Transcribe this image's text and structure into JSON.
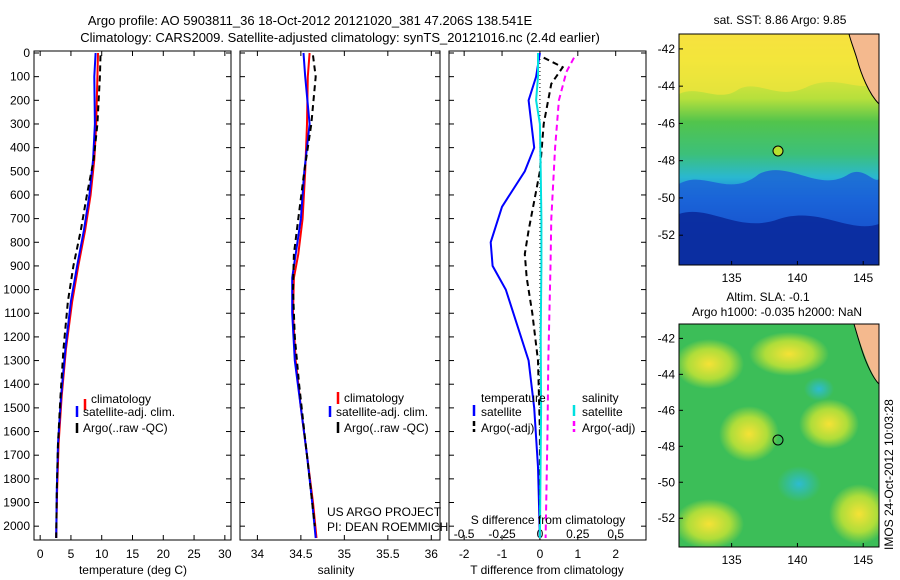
{
  "header": {
    "line1": "Argo profile: AO 5903811_36 18-Oct-2012 20121020_381 47.206S 138.541E",
    "line2": "Climatology: CARS2009. Satellite-adjusted climatology: synTS_20121016.nc (2.4d earlier)"
  },
  "colors": {
    "climatology": "#ff0000",
    "satellite": "#0000ff",
    "argo": "#000000",
    "sal_satellite": "#00e0e0",
    "sal_argo": "#ff00ff"
  },
  "panels": {
    "temperature": {
      "xlabel": "temperature (deg C)",
      "xticks": [
        "0",
        "5",
        "10",
        "15",
        "20",
        "25",
        "30"
      ],
      "legend": [
        "climatology",
        "satellite-adj. clim.",
        "Argo(..raw -QC)"
      ]
    },
    "salinity": {
      "xlabel": "salinity",
      "xticks": [
        "34",
        "34.5",
        "35",
        "35.5",
        "36"
      ],
      "legend": [
        "climatology",
        "satellite-adj. clim.",
        "Argo(..raw -QC)"
      ],
      "credit1": "US ARGO PROJECT",
      "credit2": "PI: DEAN ROEMMICH"
    },
    "difference": {
      "xlabel": "T difference from climatology",
      "top_label": "S difference from climatology",
      "xticks": [
        "-2",
        "-1",
        "0",
        "1",
        "2"
      ],
      "sticks": [
        "-0.5",
        "-0.25",
        "0",
        "0.25",
        "0.5"
      ],
      "legend_t_head": "temperature",
      "legend_t": [
        "satellite",
        "Argo(-adj)"
      ],
      "legend_s_head": "salinity",
      "legend_s": [
        "satellite",
        "Argo(-adj)"
      ]
    },
    "yticks": [
      "0",
      "100",
      "200",
      "300",
      "400",
      "500",
      "600",
      "700",
      "800",
      "900",
      "1000",
      "1100",
      "1200",
      "1300",
      "1400",
      "1500",
      "1600",
      "1700",
      "1800",
      "1900",
      "2000"
    ]
  },
  "maps": {
    "sst_title": "sat. SST: 8.86  Argo: 9.85",
    "sla_title1": "Altim. SLA: -0.1",
    "sla_title2": "Argo h1000: -0.035 h2000: NaN",
    "yticks": [
      "-42",
      "-44",
      "-46",
      "-48",
      "-50",
      "-52"
    ],
    "xticks": [
      "135",
      "140",
      "145"
    ],
    "stamp": "IMOS 24-Oct-2012 10:03:28"
  },
  "chart_data": [
    {
      "type": "line",
      "title": "Argo profile: AO 5903811_36 18-Oct-2012 20121020_381 47.206S 138.541E",
      "xlabel": "temperature (deg C)",
      "ylabel": "",
      "xlim": [
        -1,
        31
      ],
      "ylim": [
        2050,
        0
      ],
      "series": [
        {
          "name": "climatology",
          "x": [
            9.4,
            9.3,
            9.1,
            8.8,
            8.2,
            7.3,
            6.2,
            5.2,
            4.2,
            3.5,
            3.0,
            2.75,
            2.6
          ],
          "y": [
            0,
            100,
            300,
            450,
            600,
            750,
            900,
            1050,
            1250,
            1450,
            1650,
            1850,
            2050
          ]
        },
        {
          "name": "satellite-adj. clim.",
          "x": [
            9.0,
            8.8,
            8.9,
            8.6,
            8.0,
            7.1,
            6.0,
            5.0,
            4.1,
            3.4,
            2.9,
            2.7,
            2.6
          ],
          "y": [
            0,
            100,
            300,
            450,
            600,
            750,
            900,
            1050,
            1250,
            1450,
            1650,
            1850,
            2050
          ]
        },
        {
          "name": "Argo(..raw -QC)",
          "x": [
            9.8,
            9.7,
            9.3,
            8.7,
            7.6,
            6.6,
            5.4,
            4.5,
            3.8,
            3.3,
            2.9,
            2.7,
            2.6
          ],
          "y": [
            10,
            100,
            300,
            450,
            600,
            750,
            900,
            1050,
            1250,
            1450,
            1650,
            1850,
            2050
          ]
        }
      ]
    },
    {
      "type": "line",
      "xlabel": "salinity",
      "ylabel": "",
      "xlim": [
        33.8,
        36.1
      ],
      "ylim": [
        2050,
        0
      ],
      "series": [
        {
          "name": "climatology",
          "x": [
            34.6,
            34.58,
            34.57,
            34.55,
            34.52,
            34.47,
            34.42,
            34.41,
            34.44,
            34.5,
            34.57,
            34.64,
            34.68
          ],
          "y": [
            0,
            100,
            300,
            500,
            700,
            850,
            950,
            1100,
            1300,
            1500,
            1700,
            1900,
            2050
          ]
        },
        {
          "name": "satellite-adj. clim.",
          "x": [
            34.53,
            34.55,
            34.6,
            34.54,
            34.5,
            34.44,
            34.4,
            34.4,
            34.43,
            34.5,
            34.57,
            34.63,
            34.67
          ],
          "y": [
            0,
            100,
            300,
            500,
            700,
            850,
            950,
            1100,
            1300,
            1500,
            1700,
            1900,
            2050
          ]
        },
        {
          "name": "Argo(..raw -QC)",
          "x": [
            34.64,
            34.67,
            34.62,
            34.54,
            34.47,
            34.42,
            34.41,
            34.43,
            34.48,
            34.54,
            34.6,
            34.66
          ],
          "y": [
            10,
            100,
            300,
            500,
            700,
            850,
            1000,
            1200,
            1400,
            1600,
            1800,
            2000
          ]
        }
      ]
    },
    {
      "type": "line",
      "xlabel": "T difference from climatology",
      "xlim": [
        -2.4,
        2.8
      ],
      "ylim": [
        2050,
        0
      ],
      "series": [
        {
          "name": "temperature satellite",
          "x": [
            0,
            -0.1,
            -0.3,
            -0.15,
            -0.4,
            -1.0,
            -1.3,
            -1.25,
            -0.9,
            -0.6,
            -0.3,
            -0.15,
            -0.05,
            0
          ],
          "y": [
            0,
            100,
            200,
            400,
            500,
            650,
            800,
            900,
            1000,
            1150,
            1300,
            1500,
            1750,
            2050
          ]
        },
        {
          "name": "temperature Argo(-adj)",
          "x": [
            0.1,
            0.6,
            0.3,
            0.1,
            0,
            -0.3,
            -0.4,
            -0.35,
            -0.2,
            -0.05,
            0,
            0
          ],
          "y": [
            20,
            60,
            130,
            300,
            500,
            750,
            850,
            950,
            1100,
            1300,
            1600,
            2050
          ]
        },
        {
          "name": "salinity satellite",
          "x": [
            -0.05,
            -0.05,
            -0.1,
            0,
            0.02,
            0.04,
            0.04,
            0.02,
            0.03,
            0
          ],
          "y": [
            0,
            100,
            200,
            300,
            500,
            700,
            900,
            1200,
            1500,
            2050
          ]
        },
        {
          "name": "salinity Argo(-adj)",
          "x": [
            0.9,
            0.7,
            0.5,
            0.4,
            0.3,
            0.28,
            0.25,
            0.22,
            0.2,
            0.15
          ],
          "y": [
            20,
            80,
            200,
            400,
            700,
            900,
            1100,
            1300,
            1600,
            2050
          ]
        }
      ]
    }
  ]
}
